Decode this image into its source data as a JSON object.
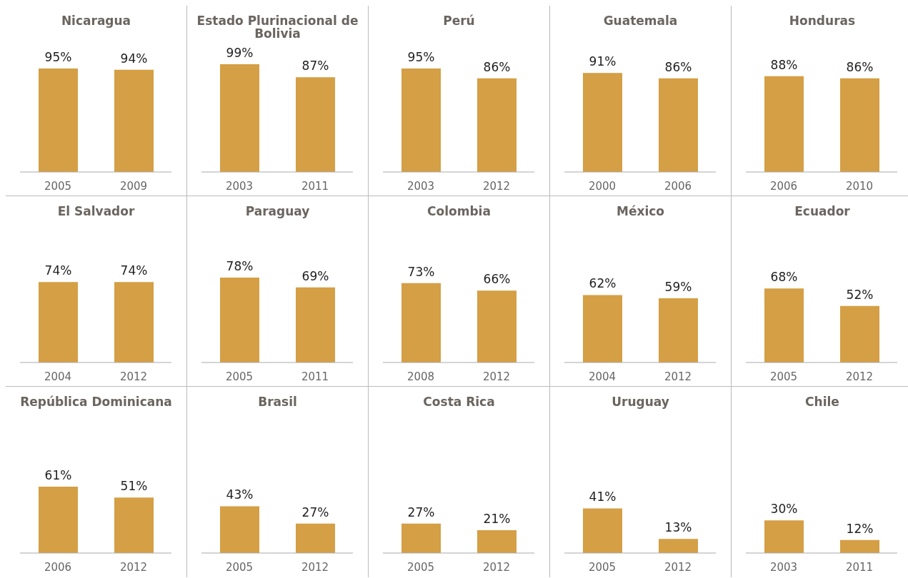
{
  "chart_data": [
    {
      "type": "bar",
      "title": "Nicaragua",
      "categories": [
        "2005",
        "2009"
      ],
      "values": [
        95,
        94
      ],
      "value_labels": [
        "95%",
        "94%"
      ],
      "color": "#d59f45"
    },
    {
      "type": "bar",
      "title": "Estado Plurinacional de Bolivia",
      "categories": [
        "2003",
        "2011"
      ],
      "values": [
        99,
        87
      ],
      "value_labels": [
        "99%",
        "87%"
      ],
      "color": "#d59f45"
    },
    {
      "type": "bar",
      "title": "Perú",
      "categories": [
        "2003",
        "2012"
      ],
      "values": [
        95,
        86
      ],
      "value_labels": [
        "95%",
        "86%"
      ],
      "color": "#d59f45"
    },
    {
      "type": "bar",
      "title": "Guatemala",
      "categories": [
        "2000",
        "2006"
      ],
      "values": [
        91,
        86
      ],
      "value_labels": [
        "91%",
        "86%"
      ],
      "color": "#d59f45"
    },
    {
      "type": "bar",
      "title": "Honduras",
      "categories": [
        "2006",
        "2010"
      ],
      "values": [
        88,
        86
      ],
      "value_labels": [
        "88%",
        "86%"
      ],
      "color": "#d59f45"
    },
    {
      "type": "bar",
      "title": "El Salvador",
      "categories": [
        "2004",
        "2012"
      ],
      "values": [
        74,
        74
      ],
      "value_labels": [
        "74%",
        "74%"
      ],
      "color": "#d59f45"
    },
    {
      "type": "bar",
      "title": "Paraguay",
      "categories": [
        "2005",
        "2011"
      ],
      "values": [
        78,
        69
      ],
      "value_labels": [
        "78%",
        "69%"
      ],
      "color": "#d59f45"
    },
    {
      "type": "bar",
      "title": "Colombia",
      "categories": [
        "2008",
        "2012"
      ],
      "values": [
        73,
        66
      ],
      "value_labels": [
        "73%",
        "66%"
      ],
      "color": "#d59f45"
    },
    {
      "type": "bar",
      "title": "México",
      "categories": [
        "2004",
        "2012"
      ],
      "values": [
        62,
        59
      ],
      "value_labels": [
        "62%",
        "59%"
      ],
      "color": "#d59f45"
    },
    {
      "type": "bar",
      "title": "Ecuador",
      "categories": [
        "2005",
        "2012"
      ],
      "values": [
        68,
        52
      ],
      "value_labels": [
        "68%",
        "52%"
      ],
      "color": "#d59f45"
    },
    {
      "type": "bar",
      "title": "República Dominicana",
      "categories": [
        "2006",
        "2012"
      ],
      "values": [
        61,
        51
      ],
      "value_labels": [
        "61%",
        "51%"
      ],
      "color": "#d59f45"
    },
    {
      "type": "bar",
      "title": "Brasil",
      "categories": [
        "2005",
        "2012"
      ],
      "values": [
        43,
        27
      ],
      "value_labels": [
        "43%",
        "27%"
      ],
      "color": "#d59f45"
    },
    {
      "type": "bar",
      "title": "Costa Rica",
      "categories": [
        "2005",
        "2012"
      ],
      "values": [
        27,
        21
      ],
      "value_labels": [
        "27%",
        "21%"
      ],
      "color": "#d59f45"
    },
    {
      "type": "bar",
      "title": "Uruguay",
      "categories": [
        "2005",
        "2012"
      ],
      "values": [
        41,
        13
      ],
      "value_labels": [
        "41%",
        "13%"
      ],
      "color": "#d59f45"
    },
    {
      "type": "bar",
      "title": "Chile",
      "categories": [
        "2003",
        "2011"
      ],
      "values": [
        30,
        12
      ],
      "value_labels": [
        "30%",
        "12%"
      ],
      "color": "#d59f45"
    }
  ]
}
